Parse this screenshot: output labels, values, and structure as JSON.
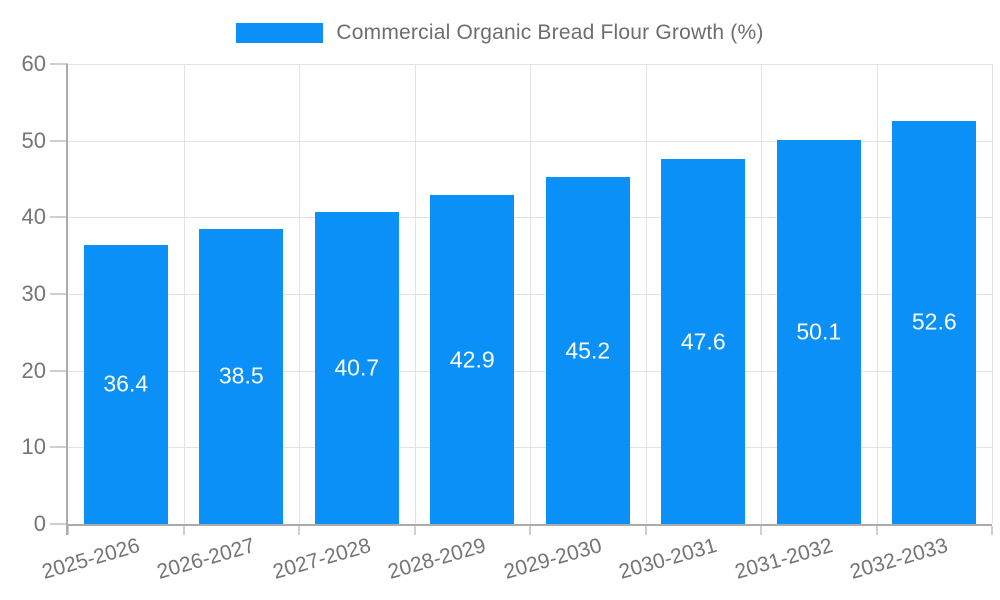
{
  "chart_data": {
    "type": "bar",
    "title": "Commercial Organic Bread Flour Growth (%)",
    "categories": [
      "2025-2026",
      "2026-2027",
      "2027-2028",
      "2028-2029",
      "2029-2030",
      "2030-2031",
      "2031-2032",
      "2032-2033"
    ],
    "values": [
      36.4,
      38.5,
      40.7,
      42.9,
      45.2,
      47.6,
      50.1,
      52.6
    ],
    "value_labels": [
      "36.4",
      "38.5",
      "40.7",
      "42.9",
      "45.2",
      "47.6",
      "50.1",
      "52.6"
    ],
    "xlabel": "",
    "ylabel": "",
    "ylim": [
      0,
      60
    ],
    "yticks": [
      0,
      10,
      20,
      30,
      40,
      50,
      60
    ],
    "grid": true,
    "legend_position": "top",
    "colors": {
      "bar": "#0a90f6",
      "bar_label_text": "#ffffff",
      "gridline": "#e3e3e3",
      "axis_line": "#ababab",
      "tick_mark": "#cfcfcf",
      "tick_text": "#757575",
      "title_text": "#6e6e6e"
    }
  }
}
